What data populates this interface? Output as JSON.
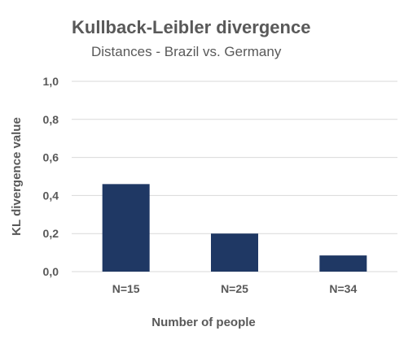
{
  "chart_data": {
    "type": "bar",
    "title": "Kullback-Leibler divergence",
    "subtitle": "Distances - Brazil vs. Germany",
    "xlabel": "Number of people",
    "ylabel": "KL divergence value",
    "categories": [
      "N=15",
      "N=25",
      "N=34"
    ],
    "values": [
      0.46,
      0.2,
      0.085
    ],
    "ylim": [
      0,
      1.0
    ],
    "yticks": [
      0.0,
      0.2,
      0.4,
      0.6,
      0.8,
      1.0
    ],
    "ytick_labels": [
      "0,0",
      "0,2",
      "0,4",
      "0,6",
      "0,8",
      "1,0"
    ],
    "grid": true,
    "legend": "none",
    "bar_color": "#1f3864"
  }
}
